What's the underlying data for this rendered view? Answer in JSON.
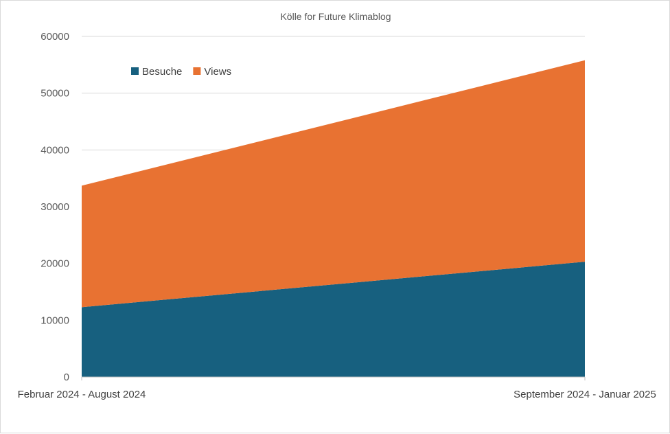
{
  "chart_data": {
    "type": "area",
    "stacked": true,
    "title": "Kölle for Future Klimablog",
    "xlabel": "",
    "ylabel": "",
    "categories": [
      "Februar 2024 - August 2024",
      "September 2024 - Januar 2025"
    ],
    "series": [
      {
        "name": "Besuche",
        "values": [
          12300,
          20300
        ],
        "color": "#17607f"
      },
      {
        "name": "Views",
        "values": [
          21400,
          35500
        ],
        "color": "#e87232"
      }
    ],
    "ylim": [
      0,
      60000
    ],
    "yticks": [
      0,
      10000,
      20000,
      30000,
      40000,
      50000,
      60000
    ],
    "grid": true,
    "legend_position": "top-left"
  }
}
